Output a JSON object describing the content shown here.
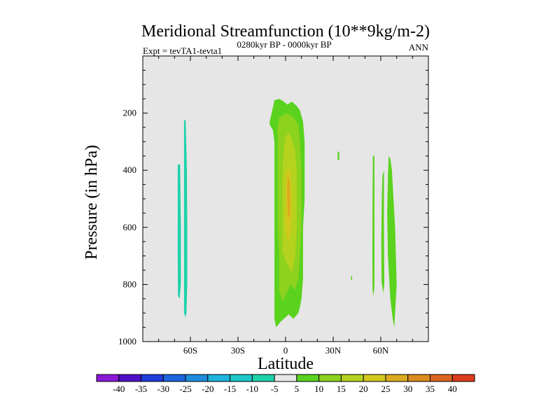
{
  "chart_data": {
    "type": "contour",
    "title": "Meridional Streamfunction (10**9kg/m-2)",
    "subtitle_left": "Expt = tevTA1-tevta1",
    "subtitle_center": "0280kyr BP - 0000kyr BP",
    "subtitle_right": "ANN",
    "xlabel": "Latitude",
    "ylabel": "Pressure (in hPa)",
    "xlim": [
      -90,
      90
    ],
    "ylim": [
      1000,
      0
    ],
    "x_ticks": [
      {
        "value": -60,
        "label": "60S"
      },
      {
        "value": -30,
        "label": "30S"
      },
      {
        "value": 0,
        "label": "0"
      },
      {
        "value": 30,
        "label": "30N"
      },
      {
        "value": 60,
        "label": "60N"
      }
    ],
    "y_ticks": [
      {
        "value": 200,
        "label": "200"
      },
      {
        "value": 400,
        "label": "400"
      },
      {
        "value": 600,
        "label": "600"
      },
      {
        "value": 800,
        "label": "800"
      },
      {
        "value": 1000,
        "label": "1000"
      }
    ],
    "background_color": "#e6e6e6",
    "colorbar": {
      "levels": [
        "-40",
        "-35",
        "-30",
        "-25",
        "-20",
        "-15",
        "-10",
        "-5",
        "5",
        "10",
        "15",
        "20",
        "25",
        "30",
        "35",
        "40"
      ],
      "colors": [
        "#8a18d6",
        "#5010c8",
        "#1e3cdc",
        "#1e64dc",
        "#1e8cdc",
        "#1eb4dc",
        "#1ec8c8",
        "#1ed2aa",
        "#e6e6e6",
        "#5ad21e",
        "#8cd21e",
        "#b4d21e",
        "#d2c81e",
        "#dcaa1e",
        "#dc8c1e",
        "#dc641e",
        "#dc3c1e"
      ]
    },
    "regions": [
      {
        "name": "cell-tropical-5-10",
        "color": "#5ad21e",
        "points": [
          [
            -10,
            230
          ],
          [
            -8,
            180
          ],
          [
            -7,
            155
          ],
          [
            -4,
            150
          ],
          [
            -1,
            160
          ],
          [
            1,
            170
          ],
          [
            4,
            160
          ],
          [
            7,
            175
          ],
          [
            9,
            190
          ],
          [
            11,
            230
          ],
          [
            12,
            300
          ],
          [
            12,
            400
          ],
          [
            12,
            500
          ],
          [
            11,
            600
          ],
          [
            11,
            700
          ],
          [
            11,
            780
          ],
          [
            10,
            850
          ],
          [
            9,
            880
          ],
          [
            8,
            900
          ],
          [
            5,
            920
          ],
          [
            2,
            905
          ],
          [
            0,
            915
          ],
          [
            -3,
            930
          ],
          [
            -6,
            950
          ],
          [
            -7,
            920
          ],
          [
            -7,
            880
          ],
          [
            -7,
            800
          ],
          [
            -7,
            700
          ],
          [
            -7,
            600
          ],
          [
            -7,
            500
          ],
          [
            -7,
            400
          ],
          [
            -7,
            300
          ],
          [
            -8,
            260
          ],
          [
            -10,
            240
          ]
        ]
      },
      {
        "name": "cell-tropical-10-15",
        "color": "#8cd21e",
        "points": [
          [
            -5,
            250
          ],
          [
            -4,
            215
          ],
          [
            -2,
            210
          ],
          [
            0,
            200
          ],
          [
            2,
            205
          ],
          [
            5,
            215
          ],
          [
            8,
            240
          ],
          [
            9,
            300
          ],
          [
            10,
            400
          ],
          [
            10,
            500
          ],
          [
            10,
            600
          ],
          [
            9,
            700
          ],
          [
            8,
            780
          ],
          [
            6,
            820
          ],
          [
            3,
            800
          ],
          [
            0,
            840
          ],
          [
            -2,
            860
          ],
          [
            -4,
            820
          ],
          [
            -4,
            700
          ],
          [
            -5,
            600
          ],
          [
            -5,
            500
          ],
          [
            -5,
            400
          ],
          [
            -5,
            300
          ]
        ]
      },
      {
        "name": "cell-tropical-15-20",
        "color": "#b4d21e",
        "points": [
          [
            -1,
            320
          ],
          [
            0,
            280
          ],
          [
            2,
            270
          ],
          [
            4,
            290
          ],
          [
            6,
            330
          ],
          [
            7,
            400
          ],
          [
            7,
            500
          ],
          [
            7,
            600
          ],
          [
            6,
            700
          ],
          [
            4,
            760
          ],
          [
            2,
            740
          ],
          [
            0,
            720
          ],
          [
            -2,
            680
          ],
          [
            -2,
            600
          ],
          [
            -2,
            500
          ],
          [
            -2,
            400
          ]
        ]
      },
      {
        "name": "cell-tropical-20-25",
        "color": "#d2c81e",
        "points": [
          [
            0,
            420
          ],
          [
            1,
            400
          ],
          [
            2,
            390
          ],
          [
            3,
            410
          ],
          [
            4,
            470
          ],
          [
            4,
            540
          ],
          [
            3,
            620
          ],
          [
            2,
            650
          ],
          [
            1,
            640
          ],
          [
            0,
            600
          ],
          [
            0,
            520
          ],
          [
            0,
            460
          ]
        ]
      },
      {
        "name": "cell-tropical-25-30",
        "color": "#dcaa1e",
        "points": [
          [
            1,
            450
          ],
          [
            1.6,
            420
          ],
          [
            2.3,
            430
          ],
          [
            2.8,
            470
          ],
          [
            3,
            520
          ],
          [
            2.6,
            560
          ],
          [
            1.9,
            570
          ],
          [
            1.3,
            540
          ],
          [
            1,
            500
          ]
        ]
      },
      {
        "name": "cell-southern-a",
        "color": "#1ed2aa",
        "points": [
          [
            -68,
            380
          ],
          [
            -66.5,
            380
          ],
          [
            -66,
            600
          ],
          [
            -66,
            800
          ],
          [
            -66.8,
            850
          ],
          [
            -67.8,
            840
          ],
          [
            -68,
            700
          ],
          [
            -68,
            500
          ]
        ]
      },
      {
        "name": "cell-southern-b",
        "color": "#1ed2aa",
        "points": [
          [
            -64,
            225
          ],
          [
            -63,
            225
          ],
          [
            -62.2,
            400
          ],
          [
            -62,
            600
          ],
          [
            -62,
            800
          ],
          [
            -62.5,
            900
          ],
          [
            -63,
            915
          ],
          [
            -64,
            900
          ],
          [
            -64,
            700
          ],
          [
            -64,
            500
          ],
          [
            -64,
            350
          ]
        ]
      },
      {
        "name": "cell-northern-a",
        "color": "#5ad21e",
        "points": [
          [
            55,
            350
          ],
          [
            56,
            350
          ],
          [
            56,
            600
          ],
          [
            56,
            800
          ],
          [
            55.5,
            840
          ],
          [
            54.8,
            820
          ],
          [
            54.7,
            700
          ],
          [
            54.8,
            500
          ]
        ]
      },
      {
        "name": "cell-northern-b",
        "color": "#5ad21e",
        "points": [
          [
            61,
            420
          ],
          [
            62,
            400
          ],
          [
            62,
            600
          ],
          [
            62.2,
            800
          ],
          [
            61.5,
            830
          ],
          [
            60.5,
            790
          ],
          [
            60.3,
            650
          ],
          [
            60.6,
            500
          ]
        ]
      },
      {
        "name": "cell-northern-c",
        "color": "#5ad21e",
        "points": [
          [
            65,
            350
          ],
          [
            66,
            360
          ],
          [
            67,
            400
          ],
          [
            69,
            600
          ],
          [
            70,
            800
          ],
          [
            68.5,
            950
          ],
          [
            67.5,
            920
          ],
          [
            66,
            850
          ],
          [
            64.5,
            700
          ],
          [
            64,
            550
          ],
          [
            64.5,
            420
          ]
        ]
      },
      {
        "name": "cell-small-a",
        "color": "#5ad21e",
        "points": [
          [
            32.8,
            335
          ],
          [
            33.8,
            335
          ],
          [
            33.8,
            365
          ],
          [
            32.8,
            365
          ]
        ]
      },
      {
        "name": "cell-small-b",
        "color": "#5ad21e",
        "points": [
          [
            41.3,
            770
          ],
          [
            41.9,
            770
          ],
          [
            41.9,
            785
          ],
          [
            41.3,
            785
          ]
        ]
      }
    ]
  }
}
